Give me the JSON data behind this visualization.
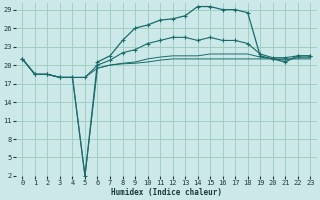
{
  "xlabel": "Humidex (Indice chaleur)",
  "bg_color": "#cce8e8",
  "grid_color": "#99ccbb",
  "line_color": "#1a6b6b",
  "x": [
    0,
    1,
    2,
    3,
    4,
    5,
    6,
    7,
    8,
    9,
    10,
    11,
    12,
    13,
    14,
    15,
    16,
    17,
    18,
    19,
    20,
    21,
    22,
    23
  ],
  "series": [
    [
      21.0,
      18.5,
      18.5,
      18.0,
      18.0,
      2.0,
      19.5,
      20.0,
      20.2,
      20.3,
      20.5,
      20.8,
      21.0,
      21.0,
      21.0,
      21.0,
      21.0,
      21.0,
      21.0,
      21.0,
      21.0,
      21.0,
      21.0,
      21.0
    ],
    [
      21.0,
      18.5,
      18.5,
      18.0,
      18.0,
      18.0,
      19.5,
      20.0,
      20.3,
      20.5,
      21.0,
      21.3,
      21.5,
      21.5,
      21.5,
      21.8,
      21.8,
      21.8,
      21.8,
      21.3,
      21.0,
      20.8,
      21.2,
      21.2
    ],
    [
      21.0,
      18.5,
      18.5,
      18.0,
      18.0,
      18.0,
      20.0,
      20.8,
      22.0,
      22.5,
      23.5,
      24.0,
      24.5,
      24.5,
      24.0,
      24.5,
      24.0,
      24.0,
      23.5,
      21.8,
      21.2,
      21.2,
      21.5,
      21.5
    ],
    [
      21.0,
      18.5,
      18.5,
      18.0,
      18.0,
      2.0,
      20.5,
      21.5,
      24.0,
      26.0,
      26.5,
      27.3,
      27.5,
      28.0,
      29.5,
      29.5,
      29.0,
      29.0,
      28.5,
      21.5,
      21.0,
      20.5,
      21.5,
      21.5
    ]
  ],
  "markers_series": [
    0,
    2,
    3
  ],
  "ylim": [
    2,
    30
  ],
  "yticks": [
    2,
    5,
    8,
    11,
    14,
    17,
    20,
    23,
    26,
    29
  ],
  "xticks": [
    0,
    1,
    2,
    3,
    4,
    5,
    6,
    7,
    8,
    9,
    10,
    11,
    12,
    13,
    14,
    15,
    16,
    17,
    18,
    19,
    20,
    21,
    22,
    23
  ],
  "xlabel_fontsize": 5.5,
  "tick_fontsize": 5.0
}
